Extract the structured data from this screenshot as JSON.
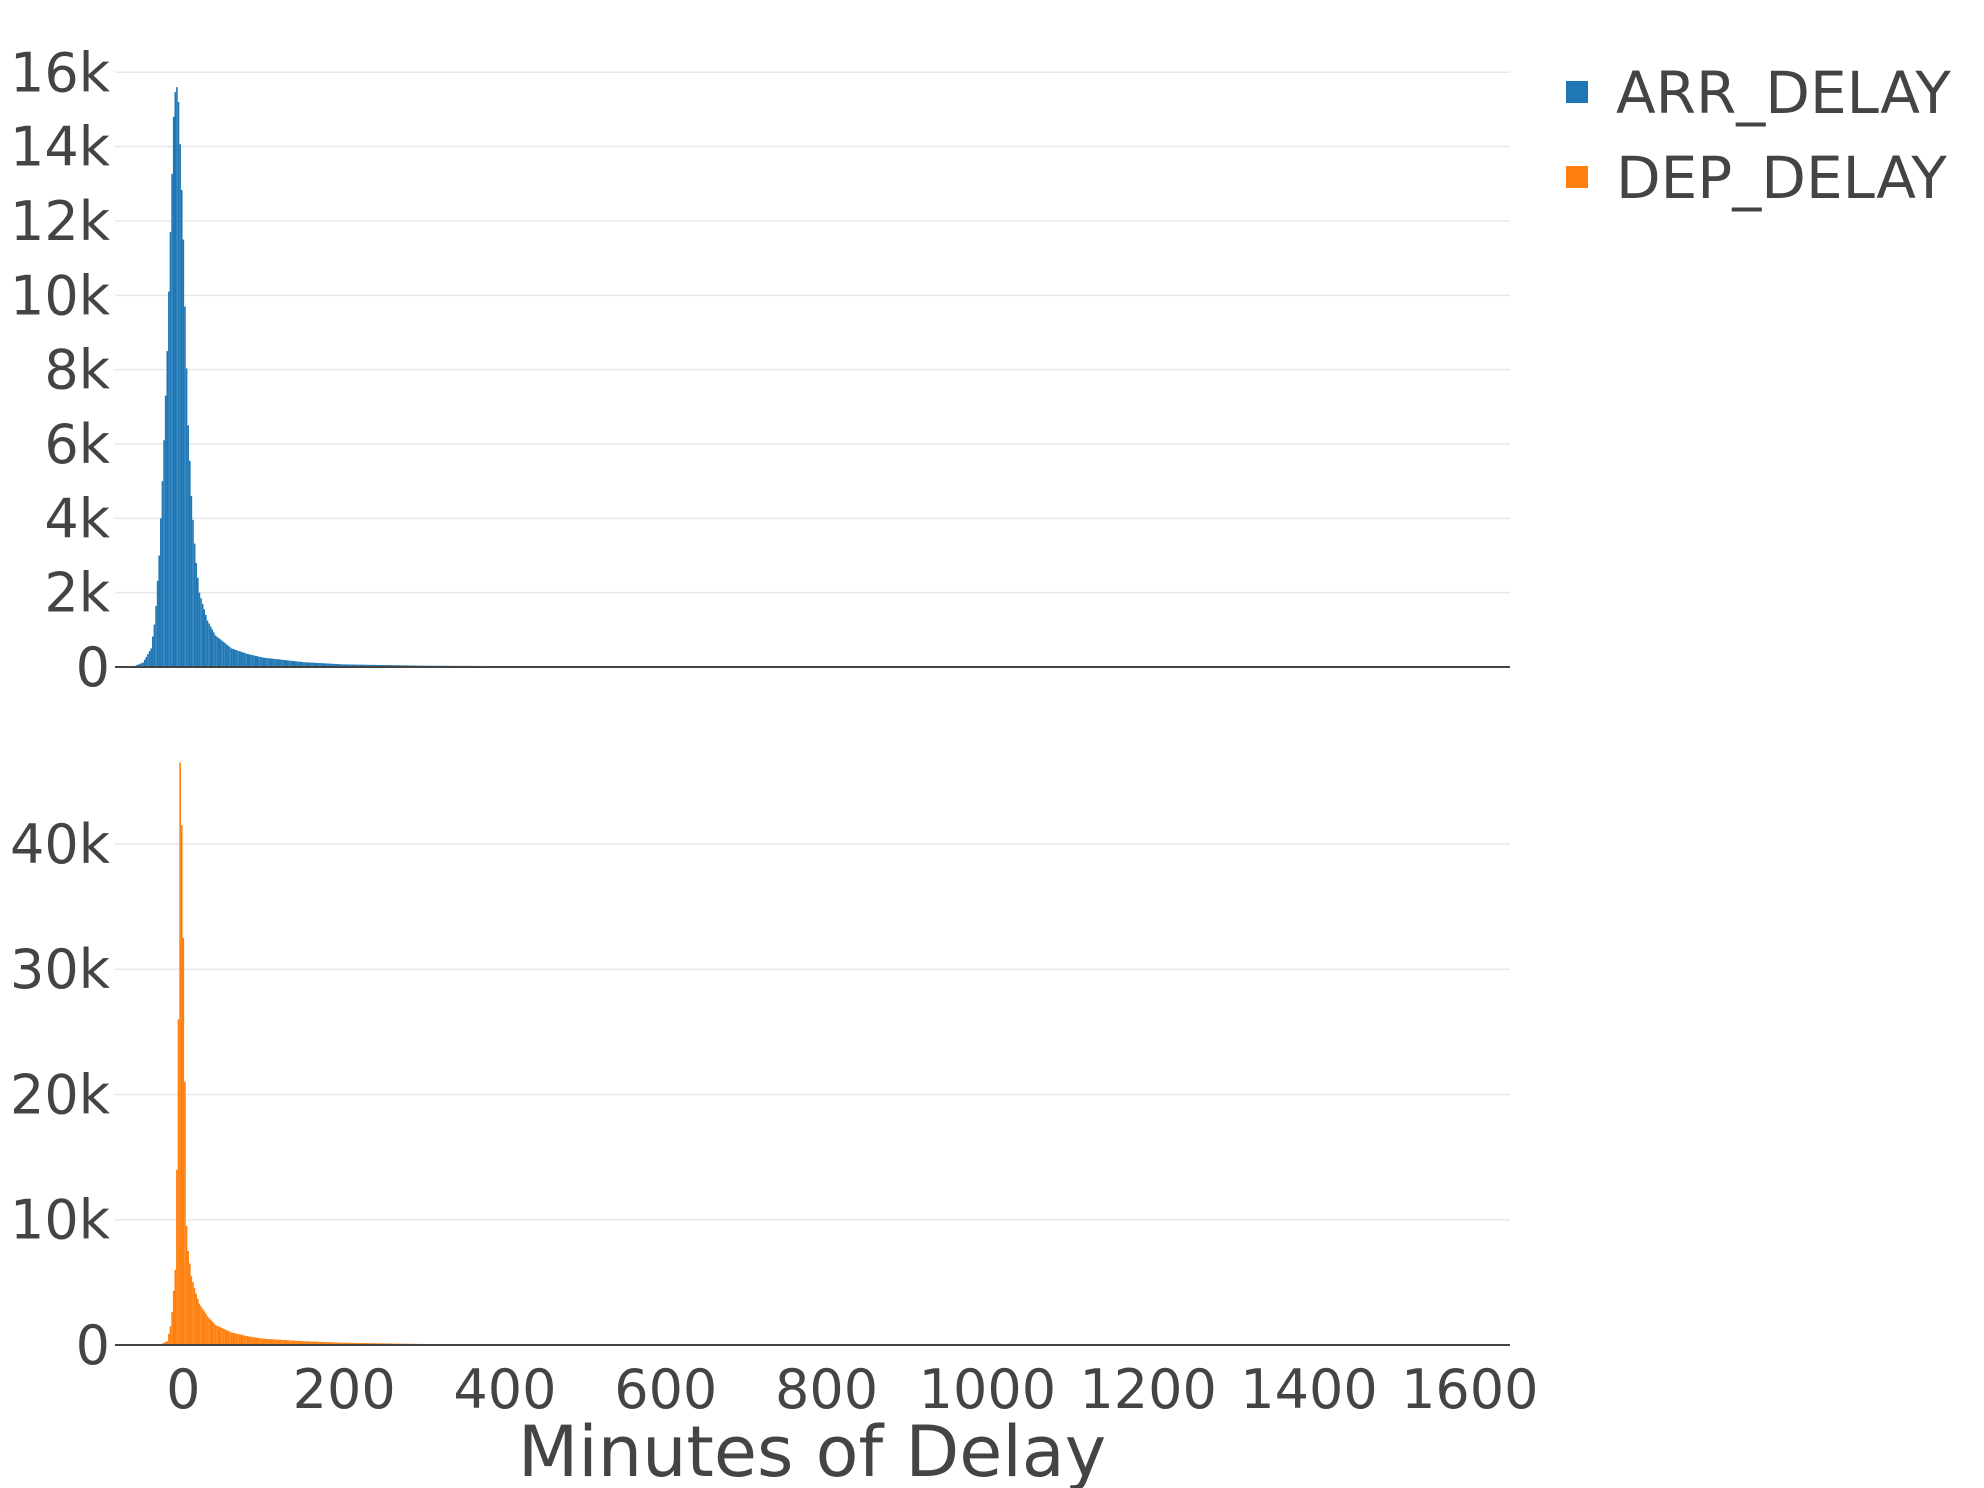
{
  "chart_data": {
    "type": "bar",
    "xlabel": "Minutes of Delay",
    "xlim": [
      -85,
      1650
    ],
    "x_ticks": [
      0,
      200,
      400,
      600,
      800,
      1000,
      1200,
      1400,
      1600
    ],
    "x_tick_labels": [
      "0",
      "200",
      "400",
      "600",
      "800",
      "1000",
      "1200",
      "1400",
      "1600"
    ],
    "bin_width": 2,
    "legend_position": "top-right",
    "grid": true,
    "subplots": [
      {
        "series_name": "ARR_DELAY",
        "color": "#1f77b4",
        "ylim": [
          0,
          16600
        ],
        "y_ticks": [
          0,
          2000,
          4000,
          6000,
          8000,
          10000,
          12000,
          14000,
          16000
        ],
        "y_tick_labels": [
          "0",
          "2k",
          "4k",
          "6k",
          "8k",
          "10k",
          "12k",
          "14k",
          "16k"
        ],
        "profile": [
          [
            -80,
            0
          ],
          [
            -60,
            30
          ],
          [
            -50,
            120
          ],
          [
            -40,
            500
          ],
          [
            -35,
            1300
          ],
          [
            -30,
            3000
          ],
          [
            -25,
            5500
          ],
          [
            -20,
            8500
          ],
          [
            -15,
            12500
          ],
          [
            -12,
            14800
          ],
          [
            -9,
            15800
          ],
          [
            -6,
            15200
          ],
          [
            -3,
            13500
          ],
          [
            0,
            11500
          ],
          [
            3,
            8800
          ],
          [
            6,
            6500
          ],
          [
            10,
            4600
          ],
          [
            15,
            3000
          ],
          [
            20,
            2000
          ],
          [
            30,
            1250
          ],
          [
            40,
            850
          ],
          [
            60,
            500
          ],
          [
            80,
            350
          ],
          [
            100,
            250
          ],
          [
            150,
            130
          ],
          [
            200,
            70
          ],
          [
            300,
            35
          ],
          [
            500,
            15
          ],
          [
            800,
            8
          ],
          [
            1200,
            5
          ],
          [
            1650,
            2
          ]
        ]
      },
      {
        "series_name": "DEP_DELAY",
        "color": "#ff7f0e",
        "ylim": [
          0,
          47500
        ],
        "y_ticks": [
          0,
          10000,
          20000,
          30000,
          40000
        ],
        "y_tick_labels": [
          "0",
          "10k",
          "20k",
          "30k",
          "40k"
        ],
        "profile": [
          [
            -30,
            0
          ],
          [
            -20,
            300
          ],
          [
            -15,
            1800
          ],
          [
            -10,
            6000
          ],
          [
            -8,
            14000
          ],
          [
            -6,
            26000
          ],
          [
            -4,
            46500
          ],
          [
            -2,
            41500
          ],
          [
            0,
            32500
          ],
          [
            2,
            21000
          ],
          [
            4,
            9500
          ],
          [
            6,
            7500
          ],
          [
            10,
            5500
          ],
          [
            15,
            4300
          ],
          [
            20,
            3300
          ],
          [
            30,
            2300
          ],
          [
            40,
            1600
          ],
          [
            60,
            1000
          ],
          [
            80,
            700
          ],
          [
            100,
            500
          ],
          [
            150,
            300
          ],
          [
            200,
            180
          ],
          [
            300,
            80
          ],
          [
            500,
            35
          ],
          [
            800,
            15
          ],
          [
            1200,
            8
          ],
          [
            1650,
            4
          ]
        ]
      }
    ]
  }
}
